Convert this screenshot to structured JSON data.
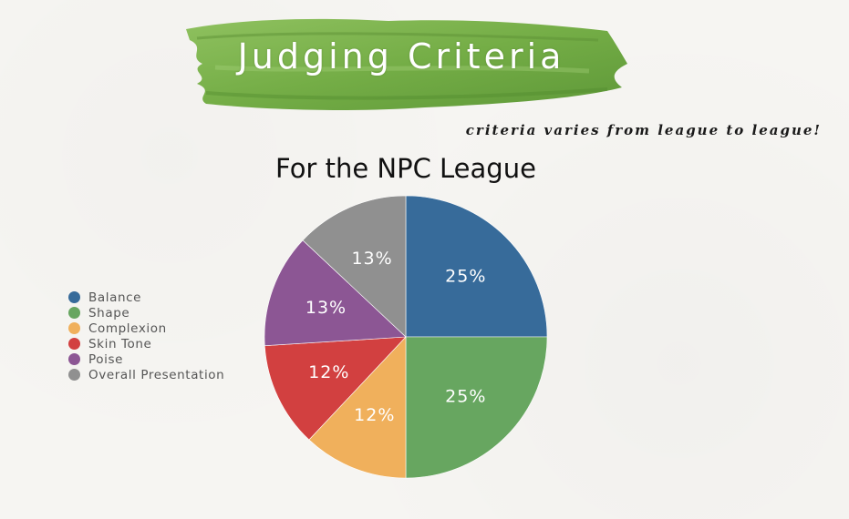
{
  "header": {
    "title": "Judging Criteria",
    "note": "criteria varies from league to league!"
  },
  "chart_data": {
    "type": "pie",
    "title": "For the NPC League",
    "categories": [
      "Balance",
      "Shape",
      "Complexion",
      "Skin Tone",
      "Poise",
      "Overall Presentation"
    ],
    "values": [
      25,
      25,
      12,
      12,
      13,
      13
    ],
    "labels": [
      "25%",
      "25%",
      "12%",
      "12%",
      "13%",
      "13%"
    ],
    "colors": [
      "#376b9a",
      "#67a660",
      "#f0b05c",
      "#d24040",
      "#8c5694",
      "#909090"
    ],
    "legend_position": "left"
  },
  "colors": {
    "brush": "#7ab04a",
    "brush_dark": "#5b9136"
  }
}
